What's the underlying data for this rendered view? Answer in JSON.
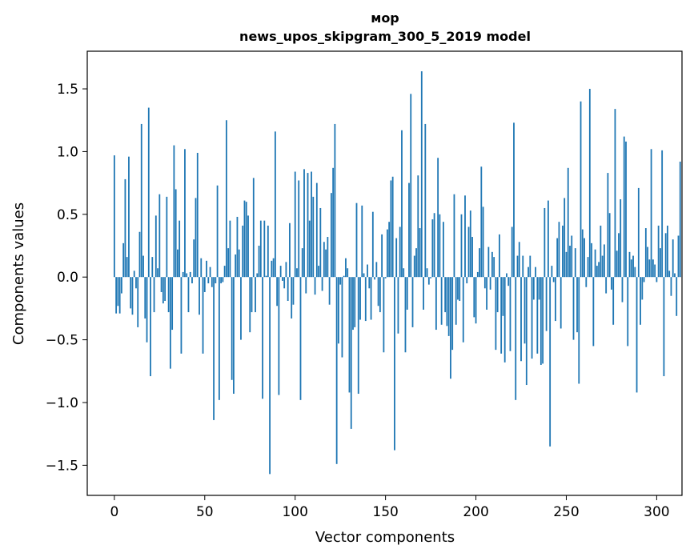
{
  "chart_data": {
    "type": "bar",
    "title": "мор",
    "subtitle": "news_upos_skipgram_300_5_2019 model",
    "xlabel": "Vector components",
    "ylabel": "Components values",
    "xlim": [
      -15,
      314
    ],
    "ylim": [
      -1.74,
      1.8
    ],
    "xticks": [
      0,
      50,
      100,
      150,
      200,
      250,
      300
    ],
    "yticks": [
      -1.5,
      -1.0,
      -0.5,
      0.0,
      0.5,
      1.0,
      1.5
    ],
    "xtick_labels": [
      "0",
      "50",
      "100",
      "150",
      "200",
      "250",
      "300"
    ],
    "ytick_labels": [
      "−1.5",
      "−1.0",
      "−0.5",
      "0.0",
      "0.5",
      "1.0",
      "1.5"
    ],
    "bar_color": "#1f77b4",
    "values": [
      0.97,
      -0.29,
      -0.23,
      -0.29,
      -0.13,
      0.27,
      0.78,
      0.16,
      0.96,
      -0.25,
      -0.3,
      0.05,
      -0.09,
      -0.4,
      0.36,
      1.22,
      0.17,
      -0.33,
      -0.52,
      1.35,
      -0.79,
      0.16,
      -0.28,
      0.49,
      0.07,
      0.66,
      -0.12,
      -0.21,
      -0.19,
      0.64,
      -0.28,
      -0.73,
      -0.42,
      1.05,
      0.7,
      0.22,
      0.45,
      -0.61,
      0.04,
      1.02,
      0.03,
      -0.28,
      0.04,
      -0.05,
      0.3,
      0.63,
      0.99,
      -0.3,
      0.15,
      -0.61,
      -0.12,
      0.13,
      -0.05,
      0.08,
      -0.08,
      -1.14,
      -0.05,
      0.73,
      -0.98,
      -0.05,
      -0.04,
      0.09,
      1.25,
      0.23,
      0.45,
      -0.82,
      -0.93,
      0.18,
      0.48,
      0.22,
      -0.5,
      0.41,
      0.61,
      0.6,
      0.49,
      -0.44,
      -0.28,
      0.79,
      -0.28,
      0.03,
      0.25,
      0.45,
      -0.97,
      0.45,
      0.01,
      0.41,
      -1.57,
      0.13,
      0.15,
      1.16,
      -0.23,
      -0.94,
      0.09,
      -0.03,
      -0.09,
      0.12,
      -0.19,
      0.43,
      -0.33,
      -0.22,
      0.84,
      0.07,
      0.77,
      -0.98,
      0.23,
      0.86,
      -0.13,
      0.83,
      0.45,
      0.84,
      0.64,
      -0.14,
      0.75,
      0.09,
      0.55,
      -0.11,
      0.28,
      0.22,
      0.32,
      -0.22,
      0.67,
      0.87,
      1.22,
      -1.49,
      -0.53,
      -0.06,
      -0.64,
      0.01,
      0.15,
      0.07,
      -0.92,
      -1.21,
      -0.42,
      -0.4,
      0.59,
      -0.93,
      -0.34,
      0.57,
      0.03,
      -0.35,
      0.1,
      -0.09,
      -0.34,
      0.52,
      -0.02,
      0.12,
      -0.23,
      -0.28,
      0.34,
      -0.6,
      -0.01,
      0.38,
      0.44,
      0.77,
      0.8,
      -1.38,
      0.31,
      -0.45,
      0.4,
      1.17,
      0.07,
      -0.6,
      -0.26,
      0.75,
      1.46,
      -0.4,
      0.17,
      0.23,
      0.81,
      0.39,
      1.64,
      -0.26,
      1.22,
      0.07,
      -0.06,
      -0.01,
      0.46,
      0.51,
      -0.42,
      0.95,
      0.5,
      -0.38,
      0.44,
      -0.28,
      -0.39,
      -0.47,
      -0.81,
      -0.58,
      0.66,
      -0.38,
      -0.18,
      -0.19,
      0.5,
      -0.52,
      0.65,
      -0.05,
      0.4,
      0.53,
      0.32,
      -0.32,
      -0.37,
      0.04,
      0.23,
      0.88,
      0.56,
      -0.09,
      -0.26,
      0.24,
      -0.1,
      0.2,
      0.16,
      -0.58,
      -0.28,
      0.34,
      -0.61,
      -0.31,
      -0.68,
      0.03,
      -0.07,
      -0.59,
      0.4,
      1.23,
      -0.98,
      0.17,
      0.28,
      -0.67,
      0.17,
      -0.53,
      -0.86,
      0.08,
      0.17,
      -0.65,
      -0.18,
      0.08,
      -0.61,
      -0.18,
      -0.7,
      -0.69,
      0.55,
      -0.43,
      0.61,
      -1.35,
      0.09,
      -0.04,
      -0.35,
      0.31,
      0.44,
      -0.41,
      0.41,
      0.63,
      0.2,
      0.87,
      0.25,
      0.33,
      -0.5,
      0.23,
      -0.44,
      -0.85,
      1.4,
      0.38,
      0.31,
      -0.08,
      0.16,
      1.5,
      0.27,
      -0.55,
      0.22,
      0.09,
      0.12,
      0.41,
      0.17,
      0.26,
      -0.13,
      0.83,
      0.51,
      -0.1,
      -0.38,
      1.34,
      0.21,
      0.35,
      0.62,
      -0.2,
      1.12,
      1.08,
      -0.55,
      0.2,
      0.14,
      0.17,
      0.08,
      -0.92,
      0.71,
      -0.38,
      -0.18,
      -0.04,
      0.39,
      0.24,
      0.14,
      1.02,
      0.14,
      0.1,
      -0.04,
      0.41,
      0.23,
      1.01,
      -0.79,
      0.35,
      0.41,
      0.05,
      -0.15,
      0.3,
      0.03,
      -0.31,
      0.33,
      0.92
    ]
  }
}
